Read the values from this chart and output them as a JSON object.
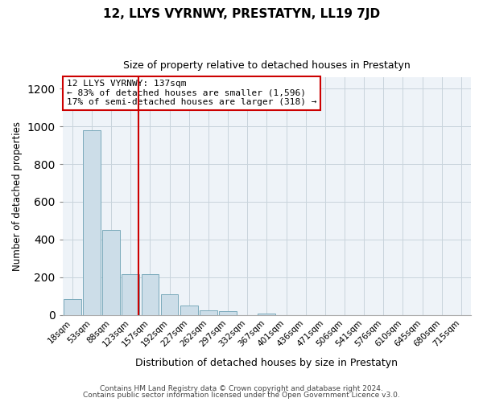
{
  "title": "12, LLYS VYRNWY, PRESTATYN, LL19 7JD",
  "subtitle": "Size of property relative to detached houses in Prestatyn",
  "xlabel": "Distribution of detached houses by size in Prestatyn",
  "ylabel": "Number of detached properties",
  "bar_labels": [
    "18sqm",
    "53sqm",
    "88sqm",
    "123sqm",
    "157sqm",
    "192sqm",
    "227sqm",
    "262sqm",
    "297sqm",
    "332sqm",
    "367sqm",
    "401sqm",
    "436sqm",
    "471sqm",
    "506sqm",
    "541sqm",
    "576sqm",
    "610sqm",
    "645sqm",
    "680sqm",
    "715sqm"
  ],
  "bar_heights": [
    85,
    980,
    450,
    215,
    215,
    110,
    50,
    25,
    20,
    0,
    8,
    0,
    0,
    0,
    0,
    0,
    0,
    0,
    0,
    0,
    0
  ],
  "bar_color": "#ccdde8",
  "bar_edge_color": "#7aaabb",
  "vline_color": "#cc0000",
  "annotation_title": "12 LLYS VYRNWY: 137sqm",
  "annotation_line1": "← 83% of detached houses are smaller (1,596)",
  "annotation_line2": "17% of semi-detached houses are larger (318) →",
  "annotation_box_color": "white",
  "annotation_box_edge": "#cc0000",
  "ylim": [
    0,
    1260
  ],
  "yticks": [
    0,
    200,
    400,
    600,
    800,
    1000,
    1200
  ],
  "footer1": "Contains HM Land Registry data © Crown copyright and database right 2024.",
  "footer2": "Contains public sector information licensed under the Open Government Licence v3.0.",
  "bg_color": "#ffffff",
  "plot_bg_color": "#eef3f8",
  "grid_color": "#c8d4dc",
  "spine_color": "#aaaaaa"
}
